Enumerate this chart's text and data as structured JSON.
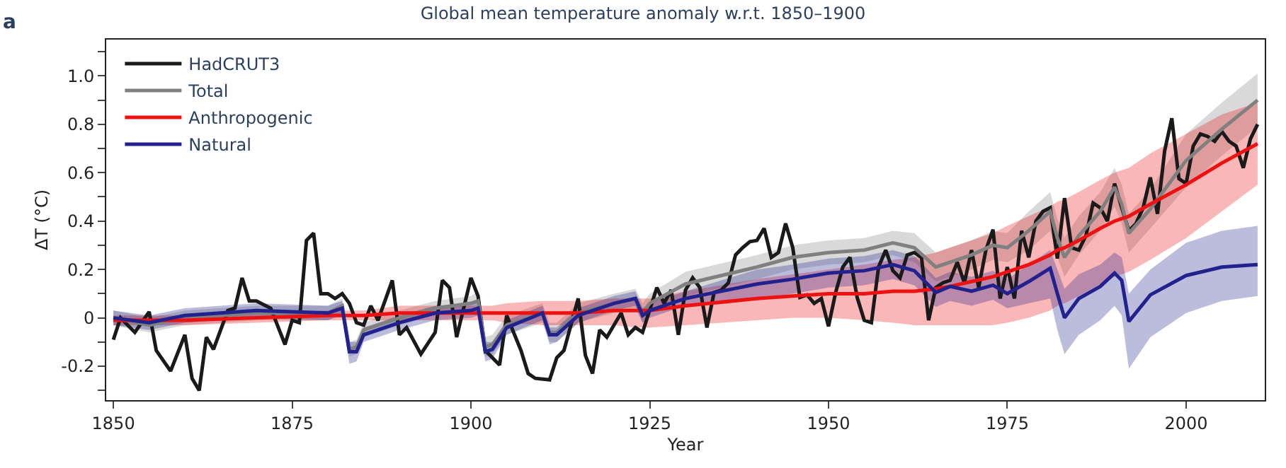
{
  "chart_data": {
    "type": "line",
    "title": "Global mean temperature anomaly w.r.t. 1850–1900",
    "xlabel": "Year",
    "ylabel": "ΔT (°C)",
    "annotations": [
      "a"
    ],
    "xlim": [
      1849,
      2011
    ],
    "xticks": [
      1850,
      1875,
      1900,
      1925,
      1950,
      1975,
      2000
    ],
    "ylim": [
      -0.34,
      1.15
    ],
    "yticks": [
      {
        "value": -0.3,
        "label": null
      },
      -0.2,
      {
        "value": -0.1,
        "label": null
      },
      0,
      {
        "value": 0.1,
        "label": null
      },
      0.2,
      {
        "value": 0.3,
        "label": null
      },
      0.4,
      {
        "value": 0.5,
        "label": null
      },
      0.6,
      {
        "value": 0.7,
        "label": null
      },
      0.8,
      {
        "value": 0.9,
        "label": null
      },
      {
        "value": 1,
        "label": "1.0"
      },
      {
        "value": 1.1,
        "label": null
      }
    ],
    "legend": "top left",
    "marker": "none",
    "line_style": "solid",
    "series": [
      {
        "name": "HadCRUT3",
        "color": "#1a1a1a",
        "x": [
          1850,
          1851,
          1853,
          1855,
          1856,
          1858,
          1860,
          1861,
          1862,
          1863,
          1864,
          1866,
          1867,
          1868,
          1869,
          1870,
          1872,
          1874,
          1875,
          1876,
          1877,
          1878,
          1879,
          1880,
          1881,
          1882,
          1883,
          1884,
          1885,
          1886,
          1887,
          1889,
          1890,
          1891,
          1893,
          1895,
          1896,
          1897,
          1898,
          1900,
          1901,
          1902,
          1903,
          1904,
          1905,
          1907,
          1908,
          1909,
          1911,
          1912,
          1913,
          1915,
          1916,
          1917,
          1918,
          1919,
          1921,
          1922,
          1923,
          1924,
          1926,
          1927,
          1928,
          1929,
          1930,
          1931,
          1932,
          1933,
          1934,
          1935,
          1936,
          1937,
          1938,
          1939,
          1940,
          1941,
          1942,
          1943,
          1944,
          1945,
          1946,
          1947,
          1948,
          1949,
          1950,
          1951,
          1952,
          1953,
          1954,
          1955,
          1956,
          1957,
          1958,
          1959,
          1960,
          1961,
          1962,
          1963,
          1964,
          1965,
          1966,
          1967,
          1968,
          1969,
          1970,
          1971,
          1972,
          1973,
          1974,
          1975,
          1976,
          1977,
          1978,
          1979,
          1980,
          1981,
          1982,
          1983,
          1984,
          1985,
          1986,
          1987,
          1988,
          1989,
          1990,
          1991,
          1992,
          1993,
          1994,
          1995,
          1996,
          1997,
          1998,
          1999,
          2000,
          2001,
          2002,
          2003,
          2004,
          2005,
          2006,
          2007,
          2008,
          2009,
          2010
        ],
        "values": [
          -0.09,
          0.0,
          -0.06,
          0.025,
          -0.135,
          -0.22,
          -0.07,
          -0.25,
          -0.3,
          -0.08,
          -0.13,
          0.03,
          0.04,
          0.165,
          0.07,
          0.07,
          0.04,
          -0.11,
          -0.01,
          -0.02,
          0.32,
          0.35,
          0.1,
          0.1,
          0.08,
          0.1,
          0.06,
          -0.02,
          -0.03,
          0.05,
          -0.01,
          0.155,
          -0.07,
          -0.04,
          -0.15,
          -0.06,
          0.155,
          0.125,
          -0.08,
          0.165,
          0.09,
          -0.135,
          -0.165,
          -0.195,
          0.01,
          -0.135,
          -0.23,
          -0.25,
          -0.256,
          -0.165,
          -0.135,
          0.08,
          -0.155,
          -0.23,
          -0.05,
          -0.08,
          0.02,
          -0.07,
          -0.04,
          -0.06,
          0.125,
          0.06,
          0.115,
          -0.07,
          0.115,
          0.165,
          0.125,
          -0.04,
          0.105,
          0.115,
          0.145,
          0.26,
          0.29,
          0.315,
          0.32,
          0.37,
          0.25,
          0.27,
          0.39,
          0.29,
          0.085,
          0.095,
          0.06,
          0.08,
          -0.035,
          0.105,
          0.21,
          0.25,
          0.085,
          -0.01,
          -0.02,
          0.21,
          0.28,
          0.195,
          0.165,
          0.26,
          0.27,
          0.25,
          -0.01,
          0.125,
          0.145,
          0.155,
          0.23,
          0.145,
          0.28,
          0.125,
          0.28,
          0.365,
          0.08,
          0.21,
          0.08,
          0.36,
          0.25,
          0.4,
          0.44,
          0.455,
          0.245,
          0.495,
          0.29,
          0.28,
          0.34,
          0.475,
          0.455,
          0.4,
          0.555,
          0.455,
          0.36,
          0.39,
          0.455,
          0.58,
          0.43,
          0.69,
          0.825,
          0.575,
          0.555,
          0.71,
          0.76,
          0.75,
          0.73,
          0.77,
          0.73,
          0.71,
          0.62,
          0.74,
          0.8
        ]
      },
      {
        "name": "Total",
        "color": "#808080",
        "x": [
          1850,
          1855,
          1860,
          1870,
          1880,
          1882,
          1883,
          1884,
          1885,
          1890,
          1895,
          1900,
          1901,
          1902,
          1903,
          1905,
          1910,
          1911,
          1912,
          1915,
          1920,
          1923,
          1924,
          1925,
          1930,
          1940,
          1945,
          1950,
          1955,
          1959,
          1962,
          1965,
          1967,
          1970,
          1973,
          1975,
          1978,
          1981,
          1982,
          1983,
          1985,
          1988,
          1990,
          1991,
          1992,
          1995,
          2000,
          2005,
          2010
        ],
        "values": [
          0.0,
          -0.03,
          0.0,
          0.02,
          0.02,
          0.05,
          -0.13,
          -0.12,
          -0.05,
          0.0,
          0.04,
          0.06,
          0.07,
          -0.12,
          -0.11,
          -0.03,
          0.02,
          -0.06,
          -0.06,
          0.02,
          0.06,
          0.08,
          0.02,
          0.06,
          0.14,
          0.21,
          0.25,
          0.27,
          0.28,
          0.31,
          0.29,
          0.21,
          0.23,
          0.26,
          0.3,
          0.29,
          0.36,
          0.44,
          0.33,
          0.25,
          0.34,
          0.44,
          0.54,
          0.47,
          0.35,
          0.45,
          0.65,
          0.78,
          0.9
        ],
        "lower": [
          -0.03,
          -0.06,
          -0.03,
          -0.01,
          -0.01,
          0.02,
          -0.16,
          -0.15,
          -0.08,
          -0.03,
          0.01,
          0.03,
          0.03,
          -0.16,
          -0.15,
          -0.07,
          -0.02,
          -0.1,
          -0.1,
          -0.02,
          0.02,
          0.04,
          -0.02,
          0.02,
          0.09,
          0.16,
          0.2,
          0.22,
          0.23,
          0.26,
          0.23,
          0.15,
          0.17,
          0.2,
          0.24,
          0.23,
          0.28,
          0.36,
          0.25,
          0.17,
          0.26,
          0.36,
          0.46,
          0.39,
          0.27,
          0.37,
          0.54,
          0.67,
          0.79
        ],
        "upper": [
          0.03,
          0.0,
          0.03,
          0.05,
          0.05,
          0.08,
          -0.1,
          -0.09,
          -0.02,
          0.03,
          0.07,
          0.09,
          0.11,
          -0.08,
          -0.07,
          0.01,
          0.06,
          -0.02,
          -0.02,
          0.06,
          0.1,
          0.12,
          0.06,
          0.1,
          0.19,
          0.26,
          0.3,
          0.32,
          0.33,
          0.36,
          0.35,
          0.27,
          0.29,
          0.32,
          0.36,
          0.35,
          0.44,
          0.52,
          0.41,
          0.33,
          0.42,
          0.52,
          0.62,
          0.55,
          0.43,
          0.53,
          0.76,
          0.89,
          1.01
        ]
      },
      {
        "name": "Anthropogenic",
        "color": "#ee1111",
        "x": [
          1850,
          1855,
          1860,
          1870,
          1880,
          1882,
          1883,
          1884,
          1885,
          1890,
          1895,
          1900,
          1901,
          1902,
          1903,
          1905,
          1910,
          1911,
          1912,
          1915,
          1920,
          1923,
          1924,
          1925,
          1930,
          1940,
          1945,
          1950,
          1955,
          1959,
          1962,
          1965,
          1967,
          1970,
          1973,
          1975,
          1978,
          1981,
          1982,
          1983,
          1985,
          1988,
          1990,
          1991,
          1992,
          1995,
          2000,
          2005,
          2010
        ],
        "values": [
          -0.01,
          -0.01,
          -0.01,
          0.0,
          0.01,
          0.01,
          0.01,
          0.01,
          0.01,
          0.02,
          0.02,
          0.02,
          0.02,
          0.02,
          0.02,
          0.02,
          0.02,
          0.02,
          0.02,
          0.02,
          0.03,
          0.03,
          0.03,
          0.03,
          0.05,
          0.08,
          0.09,
          0.1,
          0.1,
          0.11,
          0.11,
          0.12,
          0.13,
          0.15,
          0.17,
          0.19,
          0.22,
          0.26,
          0.28,
          0.29,
          0.32,
          0.37,
          0.4,
          0.41,
          0.42,
          0.47,
          0.55,
          0.64,
          0.72
        ],
        "lower": [
          -0.03,
          -0.03,
          -0.03,
          -0.02,
          -0.01,
          -0.01,
          -0.01,
          -0.01,
          -0.01,
          -0.01,
          -0.01,
          -0.01,
          -0.01,
          -0.01,
          -0.01,
          -0.02,
          -0.03,
          -0.03,
          -0.03,
          -0.03,
          -0.03,
          -0.04,
          -0.04,
          -0.04,
          -0.03,
          -0.01,
          0.0,
          0.0,
          -0.01,
          -0.02,
          -0.03,
          -0.03,
          -0.03,
          -0.03,
          -0.03,
          -0.02,
          0.0,
          0.03,
          0.05,
          0.06,
          0.09,
          0.14,
          0.17,
          0.18,
          0.19,
          0.24,
          0.33,
          0.44,
          0.55
        ],
        "upper": [
          0.01,
          0.01,
          0.01,
          0.02,
          0.03,
          0.03,
          0.03,
          0.03,
          0.03,
          0.05,
          0.05,
          0.05,
          0.05,
          0.05,
          0.05,
          0.06,
          0.07,
          0.07,
          0.07,
          0.07,
          0.08,
          0.08,
          0.08,
          0.08,
          0.11,
          0.16,
          0.18,
          0.2,
          0.22,
          0.24,
          0.25,
          0.27,
          0.29,
          0.32,
          0.35,
          0.38,
          0.42,
          0.46,
          0.48,
          0.49,
          0.52,
          0.57,
          0.6,
          0.61,
          0.62,
          0.68,
          0.76,
          0.84,
          0.89
        ]
      },
      {
        "name": "Natural",
        "color": "#22228f",
        "x": [
          1850,
          1855,
          1860,
          1870,
          1880,
          1882,
          1883,
          1884,
          1885,
          1890,
          1895,
          1900,
          1901,
          1902,
          1903,
          1905,
          1910,
          1911,
          1912,
          1915,
          1920,
          1923,
          1924,
          1925,
          1930,
          1940,
          1945,
          1950,
          1955,
          1959,
          1962,
          1965,
          1967,
          1970,
          1973,
          1975,
          1978,
          1981,
          1982,
          1983,
          1985,
          1988,
          1990,
          1991,
          1992,
          1995,
          2000,
          2005,
          2010
        ],
        "values": [
          0.0,
          -0.02,
          0.01,
          0.03,
          0.02,
          0.04,
          -0.14,
          -0.14,
          -0.07,
          -0.02,
          0.02,
          0.03,
          0.04,
          -0.14,
          -0.13,
          -0.04,
          0.02,
          -0.07,
          -0.07,
          0.01,
          0.06,
          0.08,
          0.01,
          0.03,
          0.08,
          0.14,
          0.16,
          0.185,
          0.195,
          0.22,
          0.195,
          0.105,
          0.13,
          0.11,
          0.135,
          0.1,
          0.15,
          0.205,
          0.1,
          0.0,
          0.08,
          0.13,
          0.185,
          0.155,
          -0.015,
          0.095,
          0.175,
          0.21,
          0.22
        ],
        "lower": [
          -0.03,
          -0.05,
          -0.02,
          0.0,
          -0.01,
          0.01,
          -0.19,
          -0.18,
          -0.1,
          -0.05,
          -0.01,
          0.0,
          0.01,
          -0.18,
          -0.17,
          -0.07,
          -0.01,
          -0.11,
          -0.1,
          -0.02,
          0.03,
          0.05,
          -0.02,
          0.0,
          0.05,
          0.08,
          0.1,
          0.125,
          0.135,
          0.16,
          0.135,
          0.045,
          0.07,
          0.05,
          0.075,
          0.04,
          0.06,
          0.08,
          -0.05,
          -0.15,
          -0.07,
          -0.01,
          0.05,
          0.01,
          -0.21,
          -0.08,
          0.02,
          0.07,
          0.09
        ],
        "upper": [
          0.03,
          0.01,
          0.04,
          0.06,
          0.05,
          0.07,
          -0.1,
          -0.1,
          -0.04,
          0.01,
          0.05,
          0.06,
          0.07,
          -0.1,
          -0.1,
          -0.01,
          0.05,
          -0.04,
          -0.04,
          0.04,
          0.09,
          0.11,
          0.04,
          0.06,
          0.11,
          0.2,
          0.22,
          0.245,
          0.255,
          0.28,
          0.255,
          0.165,
          0.19,
          0.17,
          0.195,
          0.16,
          0.22,
          0.28,
          0.2,
          0.12,
          0.18,
          0.22,
          0.27,
          0.25,
          0.1,
          0.2,
          0.31,
          0.36,
          0.38
        ]
      }
    ]
  }
}
